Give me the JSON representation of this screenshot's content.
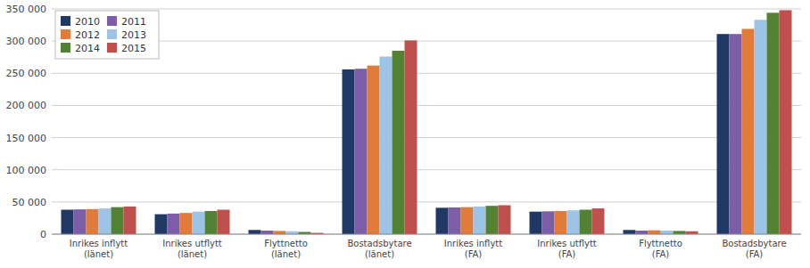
{
  "chart_data": {
    "type": "bar",
    "categories": [
      "Inrikes inflytt\n(länet)",
      "Inrikes utflytt\n(länet)",
      "Flyttnetto\n(länet)",
      "Bostadsbytare\n(länet)",
      "Inrikes inflytt\n(FA)",
      "Inrikes utflytt\n(FA)",
      "Flyttnetto\n(FA)",
      "Bostadsbytare\n(FA)"
    ],
    "series": [
      {
        "name": "2010",
        "color": "#1f3864",
        "values": [
          38000,
          31000,
          6500,
          256000,
          41000,
          35000,
          6500,
          311000
        ]
      },
      {
        "name": "2011",
        "color": "#7b5ea7",
        "values": [
          38500,
          32000,
          5500,
          257000,
          41500,
          35500,
          5500,
          311000
        ]
      },
      {
        "name": "2012",
        "color": "#e07b39",
        "values": [
          39000,
          33000,
          5000,
          262000,
          42000,
          36000,
          6000,
          319000
        ]
      },
      {
        "name": "2013",
        "color": "#9dc3e6",
        "values": [
          40000,
          35000,
          4500,
          276000,
          43000,
          37000,
          5500,
          333000
        ]
      },
      {
        "name": "2014",
        "color": "#548235",
        "values": [
          42000,
          36000,
          3500,
          285000,
          44000,
          38000,
          5000,
          344000
        ]
      },
      {
        "name": "2015",
        "color": "#c0504d",
        "values": [
          43000,
          38000,
          2000,
          301000,
          45000,
          40000,
          4500,
          348000
        ]
      }
    ],
    "ylim": [
      0,
      350000
    ],
    "yticks": [
      0,
      {
        "value": 50000,
        "label": "50 000"
      },
      {
        "value": 100000,
        "label": "100 000"
      },
      {
        "value": 150000,
        "label": "150 000"
      },
      {
        "value": 200000,
        "label": "200 000"
      },
      {
        "value": 250000,
        "label": "250 000"
      },
      {
        "value": 300000,
        "label": "300 000"
      },
      {
        "value": 350000,
        "label": "350 000"
      }
    ],
    "grid": true,
    "legend": "upper left"
  }
}
